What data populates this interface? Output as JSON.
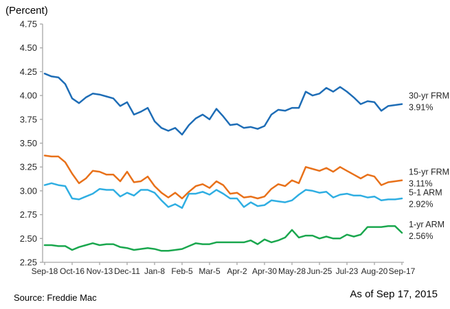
{
  "header": {
    "axis_title": "(Percent)"
  },
  "footer": {
    "source": "Source: Freddie Mac",
    "as_of": "As of Sep 17, 2015"
  },
  "colors": {
    "frm30": "#1E6DB6",
    "frm15": "#E8711A",
    "arm51": "#2FAEE2",
    "arm1": "#1AA74E",
    "axis": "#A6A6A6",
    "tick_text": "#262626"
  },
  "chart_data": {
    "type": "line",
    "title": "",
    "xlabel": "",
    "ylabel": "(Percent)",
    "ylim": [
      2.25,
      4.75
    ],
    "ytick_step": 0.25,
    "grid": false,
    "legend_position": "right-of-line-ends",
    "x": [
      "Sep-18",
      "Sep-25",
      "Oct-2",
      "Oct-9",
      "Oct-16",
      "Oct-23",
      "Oct-30",
      "Nov-6",
      "Nov-13",
      "Nov-20",
      "Nov-26",
      "Dec-4",
      "Dec-11",
      "Dec-18",
      "Dec-24",
      "Dec-31",
      "Jan-8",
      "Jan-15",
      "Jan-22",
      "Jan-29",
      "Feb-5",
      "Feb-12",
      "Feb-19",
      "Feb-26",
      "Mar-5",
      "Mar-12",
      "Mar-19",
      "Mar-26",
      "Apr-2",
      "Apr-9",
      "Apr-16",
      "Apr-23",
      "Apr-30",
      "May-7",
      "May-14",
      "May-21",
      "May-28",
      "Jun-4",
      "Jun-11",
      "Jun-18",
      "Jun-25",
      "Jul-2",
      "Jul-9",
      "Jul-16",
      "Jul-23",
      "Jul-30",
      "Aug-6",
      "Aug-13",
      "Aug-20",
      "Aug-27",
      "Sep-3",
      "Sep-10",
      "Sep-17"
    ],
    "x_tick_indices": [
      0,
      4,
      8,
      12,
      16,
      20,
      24,
      28,
      32,
      36,
      40,
      44,
      48,
      52
    ],
    "x_tick_labels": [
      "Sep-18",
      "Oct-16",
      "Nov-13",
      "Dec-11",
      "Jan-8",
      "Feb-5",
      "Mar-5",
      "Apr-2",
      "Apr-30",
      "May-28",
      "Jun-25",
      "Jul-23",
      "Aug-20",
      "Sep-17"
    ],
    "series": [
      {
        "name": "30-yr FRM",
        "end_label": "3.91%",
        "color": "#1E6DB6",
        "values": [
          4.23,
          4.2,
          4.19,
          4.12,
          3.97,
          3.92,
          3.98,
          4.02,
          4.01,
          3.99,
          3.97,
          3.89,
          3.93,
          3.8,
          3.83,
          3.87,
          3.73,
          3.66,
          3.63,
          3.66,
          3.59,
          3.69,
          3.76,
          3.8,
          3.75,
          3.86,
          3.78,
          3.69,
          3.7,
          3.66,
          3.67,
          3.65,
          3.68,
          3.8,
          3.85,
          3.84,
          3.87,
          3.87,
          4.04,
          4.0,
          4.02,
          4.08,
          4.04,
          4.09,
          4.04,
          3.98,
          3.91,
          3.94,
          3.93,
          3.84,
          3.89,
          3.9,
          3.91
        ]
      },
      {
        "name": "15-yr FRM",
        "end_label": "3.11%",
        "color": "#E8711A",
        "values": [
          3.37,
          3.36,
          3.36,
          3.3,
          3.18,
          3.08,
          3.13,
          3.21,
          3.2,
          3.17,
          3.17,
          3.1,
          3.2,
          3.09,
          3.1,
          3.15,
          3.05,
          2.98,
          2.93,
          2.98,
          2.92,
          2.99,
          3.05,
          3.07,
          3.03,
          3.1,
          3.06,
          2.97,
          2.98,
          2.93,
          2.94,
          2.92,
          2.94,
          3.02,
          3.07,
          3.05,
          3.11,
          3.08,
          3.25,
          3.23,
          3.21,
          3.24,
          3.2,
          3.25,
          3.21,
          3.17,
          3.13,
          3.17,
          3.15,
          3.06,
          3.09,
          3.1,
          3.11
        ]
      },
      {
        "name": "5-1 ARM",
        "end_label": "2.92%",
        "color": "#2FAEE2",
        "values": [
          3.06,
          3.08,
          3.06,
          3.05,
          2.92,
          2.91,
          2.94,
          2.97,
          3.02,
          3.01,
          3.01,
          2.94,
          2.98,
          2.95,
          3.01,
          3.01,
          2.98,
          2.9,
          2.83,
          2.86,
          2.82,
          2.97,
          2.97,
          2.99,
          2.96,
          3.01,
          2.97,
          2.92,
          2.92,
          2.83,
          2.88,
          2.84,
          2.85,
          2.9,
          2.89,
          2.88,
          2.9,
          2.96,
          3.01,
          3.0,
          2.98,
          2.99,
          2.93,
          2.96,
          2.97,
          2.95,
          2.95,
          2.93,
          2.94,
          2.9,
          2.91,
          2.91,
          2.92
        ]
      },
      {
        "name": "1-yr ARM",
        "end_label": "2.56%",
        "color": "#1AA74E",
        "values": [
          2.43,
          2.43,
          2.42,
          2.42,
          2.38,
          2.41,
          2.43,
          2.45,
          2.43,
          2.44,
          2.44,
          2.41,
          2.4,
          2.38,
          2.39,
          2.4,
          2.39,
          2.37,
          2.37,
          2.38,
          2.39,
          2.42,
          2.45,
          2.44,
          2.44,
          2.46,
          2.46,
          2.46,
          2.46,
          2.46,
          2.48,
          2.44,
          2.49,
          2.46,
          2.48,
          2.51,
          2.59,
          2.51,
          2.53,
          2.53,
          2.5,
          2.52,
          2.5,
          2.5,
          2.54,
          2.52,
          2.54,
          2.62,
          2.62,
          2.62,
          2.63,
          2.63,
          2.56
        ]
      }
    ]
  }
}
